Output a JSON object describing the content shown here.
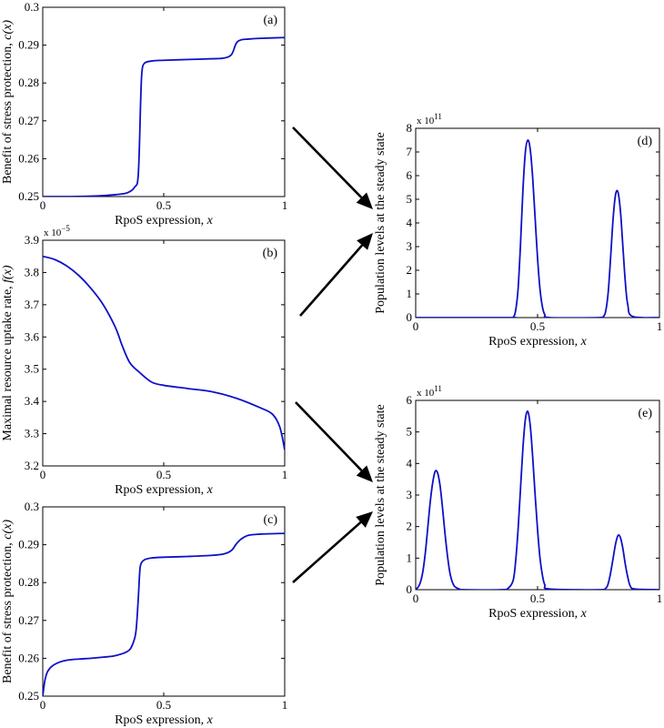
{
  "colors": {
    "curve": "#1010c8",
    "axis": "#000000",
    "arrow": "#000000"
  },
  "chart_data": [
    {
      "id": "a",
      "type": "line",
      "panel_label": "(a)",
      "xlabel_text": "RpoS expression, ",
      "xlabel_var": "x",
      "ylabel_text": "Benefit of stress protection, ",
      "ylabel_var": "c(x)",
      "xlim": [
        0,
        1
      ],
      "ylim": [
        0.25,
        0.3
      ],
      "xticks": [
        0,
        0.5,
        1
      ],
      "xtick_labels": [
        "0",
        "0.5",
        "1"
      ],
      "yticks": [
        0.25,
        0.26,
        0.27,
        0.28,
        0.29,
        0.3
      ],
      "ytick_labels": [
        "0.25",
        "0.26",
        "0.27",
        "0.28",
        "0.29",
        "0.3"
      ],
      "exponent_label": "",
      "series": [
        {
          "x": [
            0,
            0.1,
            0.2,
            0.3,
            0.35,
            0.38,
            0.395,
            0.405,
            0.41,
            0.42,
            0.45,
            0.5,
            0.6,
            0.7,
            0.75,
            0.78,
            0.8,
            0.82,
            0.85,
            0.9,
            1.0
          ],
          "y": [
            0.25,
            0.25,
            0.2501,
            0.2505,
            0.251,
            0.2525,
            0.256,
            0.276,
            0.283,
            0.2852,
            0.2858,
            0.286,
            0.2862,
            0.2864,
            0.2866,
            0.2875,
            0.2905,
            0.2914,
            0.2916,
            0.2918,
            0.292
          ]
        }
      ]
    },
    {
      "id": "b",
      "type": "line",
      "panel_label": "(b)",
      "xlabel_text": "RpoS expression, ",
      "xlabel_var": "x",
      "ylabel_text": "Maximal resource uptake rate, ",
      "ylabel_var": "f(x)",
      "xlim": [
        0,
        1
      ],
      "ylim": [
        3.2,
        3.9
      ],
      "xticks": [
        0,
        0.5,
        1
      ],
      "xtick_labels": [
        "0",
        "0.5",
        "1"
      ],
      "yticks": [
        3.2,
        3.3,
        3.4,
        3.5,
        3.6,
        3.7,
        3.8,
        3.9
      ],
      "ytick_labels": [
        "3.2",
        "3.3",
        "3.4",
        "3.5",
        "3.6",
        "3.7",
        "3.8",
        "3.9"
      ],
      "exponent_label": "x 10",
      "exponent_power": "−5",
      "series": [
        {
          "x": [
            0,
            0.05,
            0.1,
            0.15,
            0.2,
            0.25,
            0.3,
            0.33,
            0.36,
            0.4,
            0.45,
            0.5,
            0.6,
            0.7,
            0.8,
            0.9,
            0.95,
            0.98,
            1.0
          ],
          "y": [
            3.85,
            3.84,
            3.82,
            3.79,
            3.75,
            3.7,
            3.63,
            3.57,
            3.52,
            3.49,
            3.46,
            3.45,
            3.44,
            3.43,
            3.41,
            3.38,
            3.36,
            3.32,
            3.25
          ]
        }
      ]
    },
    {
      "id": "c",
      "type": "line",
      "panel_label": "(c)",
      "xlabel_text": "RpoS expression, ",
      "xlabel_var": "x",
      "ylabel_text": "Benefit of stress protection, ",
      "ylabel_var": "c(x)",
      "xlim": [
        0,
        1
      ],
      "ylim": [
        0.25,
        0.3
      ],
      "xticks": [
        0,
        0.5,
        1
      ],
      "xtick_labels": [
        "0",
        "0.5",
        "1"
      ],
      "yticks": [
        0.25,
        0.26,
        0.27,
        0.28,
        0.29,
        0.3
      ],
      "ytick_labels": [
        "0.25",
        "0.26",
        "0.27",
        "0.28",
        "0.29",
        "0.3"
      ],
      "exponent_label": "",
      "series": [
        {
          "x": [
            0,
            0.005,
            0.01,
            0.02,
            0.04,
            0.07,
            0.1,
            0.15,
            0.2,
            0.25,
            0.3,
            0.35,
            0.37,
            0.385,
            0.395,
            0.4,
            0.405,
            0.42,
            0.45,
            0.5,
            0.6,
            0.7,
            0.75,
            0.78,
            0.8,
            0.82,
            0.85,
            0.9,
            1.0
          ],
          "y": [
            0.25,
            0.2525,
            0.2545,
            0.2565,
            0.258,
            0.259,
            0.2595,
            0.2598,
            0.26,
            0.2603,
            0.2607,
            0.2618,
            0.2635,
            0.267,
            0.276,
            0.282,
            0.2848,
            0.286,
            0.2865,
            0.2867,
            0.2869,
            0.2872,
            0.2876,
            0.2885,
            0.2902,
            0.2915,
            0.2925,
            0.2928,
            0.293
          ]
        }
      ]
    },
    {
      "id": "d",
      "type": "line",
      "panel_label": "(d)",
      "xlabel_text": "RpoS expression, ",
      "xlabel_var": "x",
      "ylabel_text": "Population levels at the steady state",
      "ylabel_var": "",
      "xlim": [
        0,
        1
      ],
      "ylim": [
        0,
        8
      ],
      "xticks": [
        0,
        0.5,
        1
      ],
      "xtick_labels": [
        "0",
        "0.5",
        "1"
      ],
      "yticks": [
        0,
        1,
        2,
        3,
        4,
        5,
        6,
        7,
        8
      ],
      "ytick_labels": [
        "0",
        "1",
        "2",
        "3",
        "4",
        "5",
        "6",
        "7",
        "8"
      ],
      "exponent_label": "x 10",
      "exponent_power": "11",
      "series": [
        {
          "x": [
            0,
            0.38,
            0.4,
            0.41,
            0.42,
            0.43,
            0.44,
            0.45,
            0.46,
            0.47,
            0.48,
            0.49,
            0.5,
            0.51,
            0.52,
            0.53,
            0.55,
            0.75,
            0.77,
            0.78,
            0.79,
            0.8,
            0.81,
            0.82,
            0.83,
            0.84,
            0.85,
            0.86,
            0.87,
            0.89,
            1.0
          ],
          "y": [
            0,
            0,
            0.02,
            0.3,
            1.2,
            3.1,
            5.4,
            7.0,
            7.5,
            7.1,
            5.9,
            4.2,
            2.5,
            1.2,
            0.45,
            0.12,
            0,
            0,
            0.05,
            0.3,
            1.1,
            2.6,
            4.2,
            5.2,
            5.3,
            4.5,
            3.0,
            1.5,
            0.55,
            0.05,
            0
          ]
        }
      ]
    },
    {
      "id": "e",
      "type": "line",
      "panel_label": "(e)",
      "xlabel_text": "RpoS expression, ",
      "xlabel_var": "x",
      "ylabel_text": "Population levels at the steady state",
      "ylabel_var": "",
      "xlim": [
        0,
        1
      ],
      "ylim": [
        0,
        6
      ],
      "xticks": [
        0,
        0.5,
        1
      ],
      "xtick_labels": [
        "0",
        "0.5",
        "1"
      ],
      "yticks": [
        0,
        1,
        2,
        3,
        4,
        5,
        6
      ],
      "ytick_labels": [
        "0",
        "1",
        "2",
        "3",
        "4",
        "5",
        "6"
      ],
      "exponent_label": "x 10",
      "exponent_power": "11",
      "series": [
        {
          "x": [
            0,
            0.01,
            0.02,
            0.03,
            0.04,
            0.05,
            0.06,
            0.07,
            0.08,
            0.09,
            0.1,
            0.11,
            0.12,
            0.13,
            0.14,
            0.15,
            0.16,
            0.18,
            0.2,
            0.35,
            0.38,
            0.4,
            0.41,
            0.42,
            0.43,
            0.44,
            0.45,
            0.46,
            0.47,
            0.48,
            0.49,
            0.5,
            0.51,
            0.52,
            0.53,
            0.55,
            0.75,
            0.78,
            0.79,
            0.8,
            0.81,
            0.82,
            0.83,
            0.84,
            0.85,
            0.86,
            0.87,
            0.88,
            0.9,
            1.0
          ],
          "y": [
            0.02,
            0.08,
            0.25,
            0.6,
            1.2,
            2.0,
            2.8,
            3.4,
            3.75,
            3.7,
            3.3,
            2.6,
            1.8,
            1.1,
            0.55,
            0.25,
            0.1,
            0.02,
            0,
            0,
            0.05,
            0.3,
            0.9,
            1.9,
            3.2,
            4.5,
            5.4,
            5.65,
            5.2,
            4.2,
            3.0,
            1.9,
            1.0,
            0.45,
            0.15,
            0.02,
            0,
            0.05,
            0.2,
            0.55,
            1.0,
            1.45,
            1.72,
            1.65,
            1.3,
            0.8,
            0.4,
            0.12,
            0.02,
            0
          ]
        }
      ]
    }
  ]
}
